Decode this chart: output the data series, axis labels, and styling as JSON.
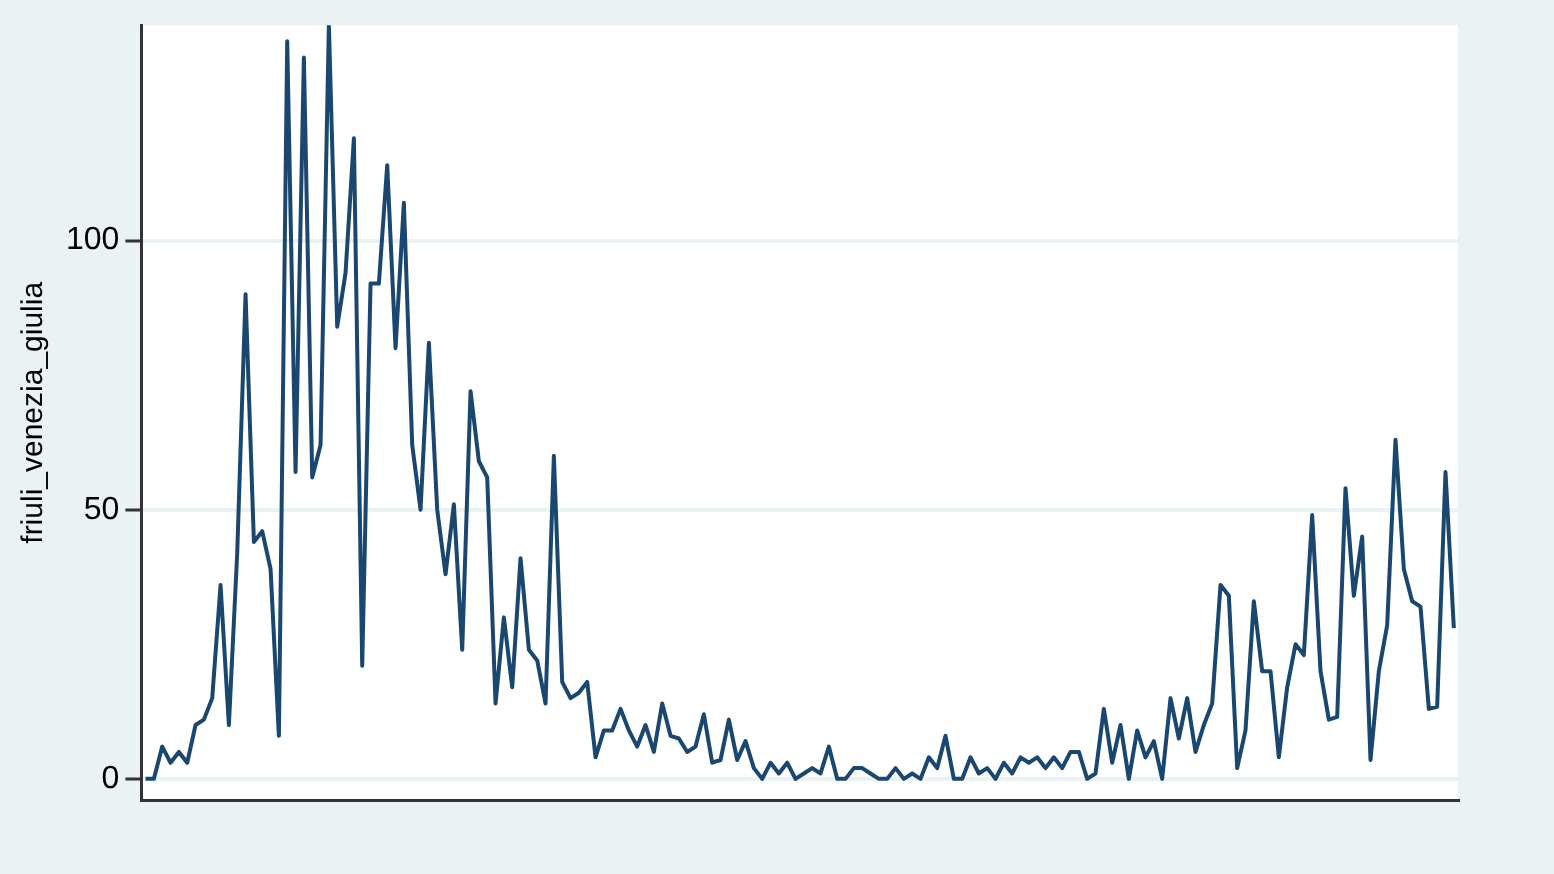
{
  "chart_data": {
    "type": "line",
    "ylabel": "friuli_venezia_giulia",
    "categories": [
      null,
      null,
      null,
      null,
      null,
      null,
      null,
      null,
      null,
      null,
      null,
      null,
      null,
      null,
      null,
      null,
      null,
      null,
      null,
      null,
      null,
      null,
      null,
      null,
      null,
      null,
      null,
      null,
      null,
      null,
      null,
      null,
      null,
      null,
      null,
      null,
      null,
      null,
      null,
      null,
      null,
      null,
      null,
      null,
      null,
      null,
      null,
      null,
      null,
      null,
      null,
      null,
      null,
      null,
      null,
      null,
      null,
      null,
      null,
      null,
      null,
      null,
      null,
      null,
      null,
      null,
      null,
      null,
      null,
      null,
      null,
      null,
      null,
      null,
      null,
      null,
      null,
      null,
      null,
      null,
      null,
      null,
      null,
      null,
      null,
      null,
      null,
      null,
      null,
      null,
      null,
      null,
      null,
      null,
      null,
      null,
      null,
      null,
      null,
      null,
      null,
      null,
      null,
      null,
      null,
      null,
      null,
      null,
      null,
      null,
      null,
      null,
      null,
      null,
      null,
      null,
      null,
      null,
      null,
      null,
      null,
      null,
      null,
      null,
      null,
      null,
      null,
      null,
      null,
      null,
      null,
      null,
      null,
      null,
      null,
      null,
      null,
      null,
      null,
      null,
      null,
      null,
      null,
      null,
      null,
      null,
      null,
      null,
      null,
      null,
      null,
      null,
      null,
      null,
      null,
      null,
      null,
      null
    ],
    "series": [
      {
        "color": "#1a476f",
        "values": [
          0,
          0,
          6,
          3,
          5,
          3,
          10,
          11,
          15,
          36,
          10,
          42,
          90,
          44,
          46,
          39,
          8,
          137,
          57,
          134,
          56,
          62,
          140,
          84,
          94,
          119,
          21,
          92,
          92,
          114,
          80,
          107,
          62,
          50,
          81,
          50,
          38,
          51,
          24,
          72,
          59,
          56,
          14,
          30,
          17,
          41,
          24,
          22,
          14,
          60,
          18,
          15,
          16,
          18,
          4,
          9,
          9,
          13,
          9,
          6,
          10,
          5,
          14,
          8,
          7.5,
          5,
          6,
          12,
          3,
          3.5,
          11,
          3.5,
          7,
          2,
          0,
          3,
          1,
          3,
          0,
          1,
          2,
          1,
          6,
          0,
          0,
          2,
          2,
          1,
          0,
          0,
          2,
          0,
          1,
          0,
          4,
          2,
          8,
          0,
          0,
          4,
          1,
          2,
          0,
          3,
          1,
          4,
          3,
          4,
          2,
          4,
          2,
          5,
          5,
          0,
          1,
          13,
          3,
          10,
          0,
          9,
          4,
          7,
          0,
          15,
          7.5,
          15,
          5,
          10,
          14,
          36,
          34,
          2,
          9,
          33,
          20,
          20,
          4,
          17,
          25,
          23,
          49,
          20,
          11,
          11.5,
          54,
          34,
          45,
          3.5,
          20,
          28.5,
          63,
          39,
          33,
          32,
          13,
          13.4,
          57,
          28
        ]
      }
    ],
    "ylim": [
      -4,
      140
    ],
    "yticks": [
      0,
      50,
      100
    ],
    "grid": "y",
    "marker": "none",
    "line_style": "solid"
  }
}
